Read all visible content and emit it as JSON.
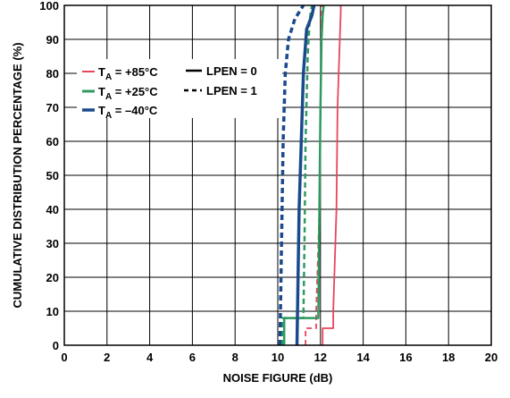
{
  "chart_data": {
    "type": "line",
    "xlabel": "NOISE FIGURE (dB)",
    "ylabel": "CUMULATIVE DISTRIBUTION PERCENTAGE (%)",
    "xlim": [
      0,
      20
    ],
    "ylim": [
      0,
      100
    ],
    "x_ticks": [
      "0",
      "2",
      "4",
      "6",
      "8",
      "10",
      "12",
      "14",
      "16",
      "18",
      "20"
    ],
    "y_ticks": [
      "0",
      "10",
      "20",
      "30",
      "40",
      "50",
      "60",
      "70",
      "80",
      "90",
      "100"
    ],
    "grid": true,
    "legend_placement": "top-left",
    "legend": {
      "t85": {
        "t": "T",
        "sub": "A",
        "rest": " = +85°C"
      },
      "t25": {
        "t": "T",
        "sub": "A",
        "rest": " = +25°C"
      },
      "tm40": {
        "t": "T",
        "sub": "A",
        "rest": " = –40°C"
      },
      "lpen0": "LPEN = 0",
      "lpen1": "LPEN = 1"
    },
    "series": [
      {
        "color": "#e8445c",
        "dash": false,
        "x": [
          12.1,
          12.1,
          12.6,
          12.6,
          12.75,
          12.8,
          12.95,
          12.95
        ],
        "y": [
          0,
          5,
          5,
          10,
          40,
          70,
          98,
          100
        ]
      },
      {
        "color": "#e8445c",
        "dash": true,
        "x": [
          11.3,
          11.3,
          11.8,
          11.8,
          11.95,
          12.0,
          12.05,
          12.05
        ],
        "y": [
          0,
          5,
          5,
          10,
          40,
          70,
          98,
          100
        ]
      },
      {
        "color": "#2e9a60",
        "dash": false,
        "x": [
          10.3,
          10.3,
          11.9,
          11.95,
          12.0,
          12.05,
          12.1,
          12.15
        ],
        "y": [
          0,
          8,
          8,
          40,
          70,
          90,
          97,
          100
        ]
      },
      {
        "color": "#2e9a60",
        "dash": true,
        "x": [
          10.2,
          10.2,
          11.2,
          11.25,
          11.3,
          11.4,
          11.5,
          11.6
        ],
        "y": [
          0,
          8,
          8,
          30,
          60,
          85,
          96,
          100
        ]
      },
      {
        "color": "#1a4a8c",
        "dash": false,
        "x": [
          10.9,
          10.95,
          11.0,
          11.1,
          11.2,
          11.35,
          11.6,
          11.7
        ],
        "y": [
          0,
          20,
          40,
          60,
          80,
          93,
          97,
          100
        ]
      },
      {
        "color": "#1a4a8c",
        "dash": true,
        "x": [
          10.1,
          10.15,
          10.2,
          10.25,
          10.35,
          10.5,
          10.8,
          11.2
        ],
        "y": [
          0,
          20,
          40,
          60,
          80,
          90,
          96,
          100
        ]
      }
    ]
  }
}
